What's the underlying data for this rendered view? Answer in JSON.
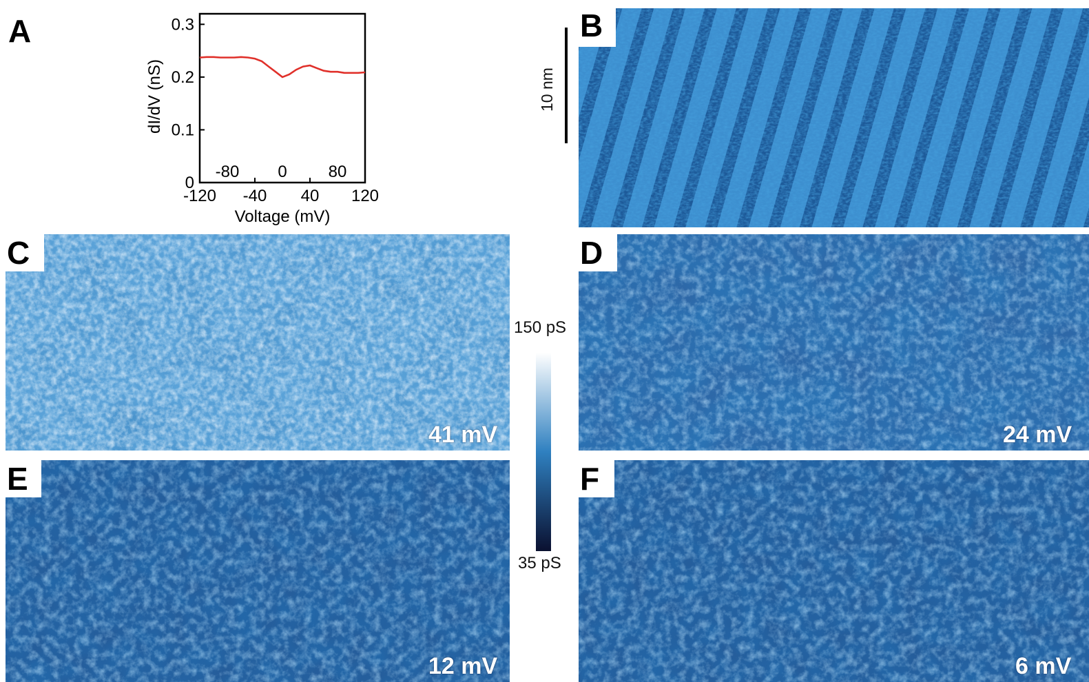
{
  "panels": {
    "A": {
      "letter": "A"
    },
    "B": {
      "letter": "B"
    },
    "C": {
      "letter": "C",
      "energy": "41 mV"
    },
    "D": {
      "letter": "D",
      "energy": "24 mV"
    },
    "E": {
      "letter": "E",
      "energy": "12 mV"
    },
    "F": {
      "letter": "F",
      "energy": "6 mV"
    }
  },
  "scale_bar": {
    "label": "10 nm"
  },
  "colorbar": {
    "max_label": "150 pS",
    "min_label": "35 pS",
    "top_color": "#ffffff",
    "mid_color": "#2f80c0",
    "bottom_color": "#0a1030"
  },
  "chart_data": {
    "type": "line",
    "xlabel": "Voltage (mV)",
    "ylabel": "dI/dV (nS)",
    "xlim": [
      -120,
      120
    ],
    "ylim": [
      0,
      0.32
    ],
    "xticks": [
      -120,
      -40,
      40,
      120
    ],
    "xticks_inner": [
      -80,
      0,
      80
    ],
    "yticks": [
      0,
      0.1,
      0.2,
      0.3
    ],
    "ytick_labels": [
      "0",
      "0.1",
      "0.2",
      "0.3"
    ],
    "line_color": "#e0302a",
    "series": [
      {
        "x": [
          -120,
          -110,
          -100,
          -90,
          -80,
          -70,
          -60,
          -50,
          -40,
          -30,
          -20,
          -10,
          0,
          10,
          20,
          30,
          40,
          50,
          60,
          70,
          80,
          90,
          100,
          110,
          120
        ],
        "y": [
          0.237,
          0.238,
          0.238,
          0.237,
          0.237,
          0.237,
          0.238,
          0.237,
          0.235,
          0.23,
          0.22,
          0.21,
          0.2,
          0.205,
          0.214,
          0.22,
          0.222,
          0.217,
          0.212,
          0.21,
          0.21,
          0.208,
          0.208,
          0.208,
          0.209
        ]
      }
    ]
  }
}
